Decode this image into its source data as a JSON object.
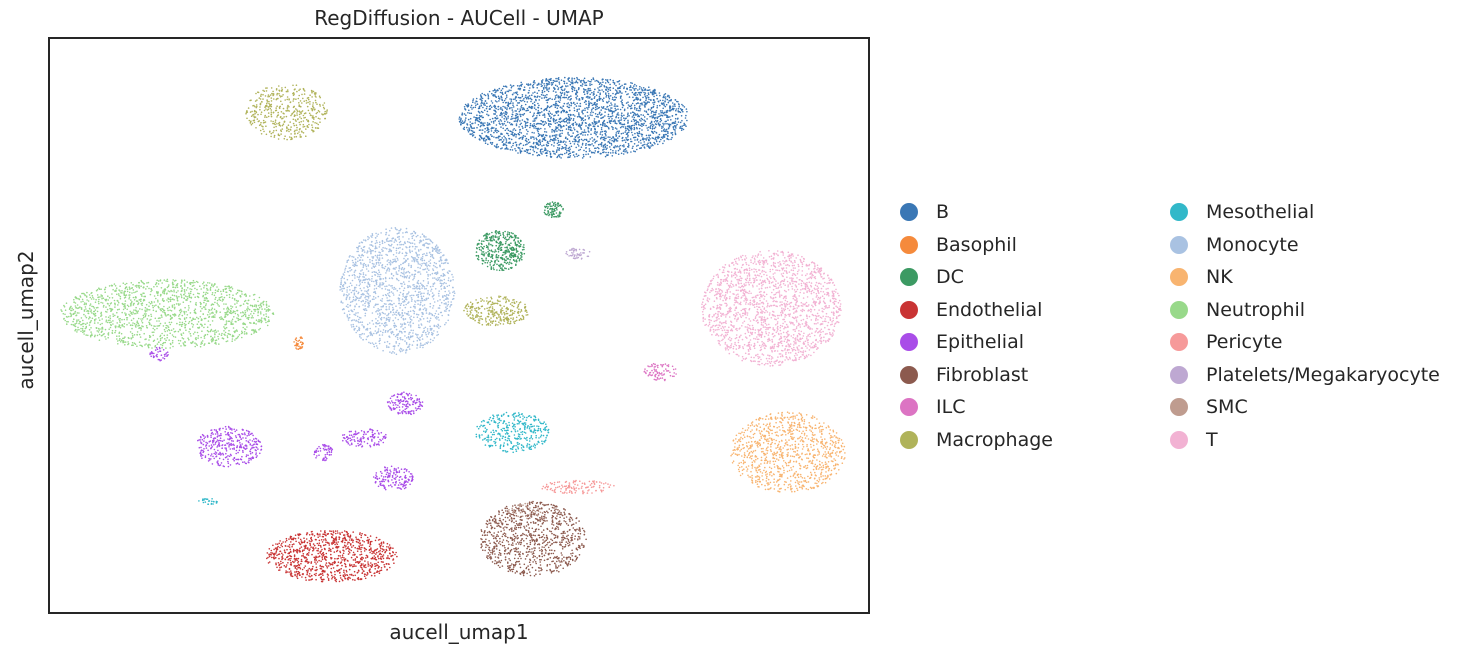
{
  "chart_data": {
    "type": "scatter",
    "title": "RegDiffusion - AUCell - UMAP",
    "xlabel": "aucell_umap1",
    "ylabel": "aucell_umap2",
    "xlim": [
      0,
      100
    ],
    "ylim": [
      0,
      100
    ],
    "grid": false,
    "legend_placement": "right",
    "series": [
      {
        "name": "B",
        "color": "#3a77b5",
        "clusters": [
          {
            "cx": 64,
            "cy": 86,
            "rx": 14,
            "ry": 7,
            "n": 2600
          }
        ]
      },
      {
        "name": "Basophil",
        "color": "#f58a3c",
        "clusters": [
          {
            "cx": 30.5,
            "cy": 47,
            "rx": 0.6,
            "ry": 1.2,
            "n": 40
          }
        ]
      },
      {
        "name": "DC",
        "color": "#3c9a63",
        "clusters": [
          {
            "cx": 55,
            "cy": 63,
            "rx": 3,
            "ry": 3.5,
            "n": 380
          },
          {
            "cx": 61.5,
            "cy": 70,
            "rx": 1.2,
            "ry": 1.4,
            "n": 80
          }
        ]
      },
      {
        "name": "Endothelial",
        "color": "#c93434",
        "clusters": [
          {
            "cx": 34.5,
            "cy": 10,
            "rx": 8,
            "ry": 4.5,
            "n": 950
          }
        ]
      },
      {
        "name": "Epithelial",
        "color": "#a94de8",
        "clusters": [
          {
            "cx": 22,
            "cy": 29,
            "rx": 4,
            "ry": 3.5,
            "n": 350
          },
          {
            "cx": 43.5,
            "cy": 36.5,
            "rx": 2.2,
            "ry": 2,
            "n": 140
          },
          {
            "cx": 38.5,
            "cy": 30.5,
            "rx": 2.8,
            "ry": 1.6,
            "n": 120
          },
          {
            "cx": 42,
            "cy": 23.5,
            "rx": 2.5,
            "ry": 2.2,
            "n": 150
          },
          {
            "cx": 33.5,
            "cy": 28,
            "rx": 1.2,
            "ry": 1.5,
            "n": 60
          },
          {
            "cx": 13.5,
            "cy": 45,
            "rx": 1.2,
            "ry": 1.2,
            "n": 40
          }
        ]
      },
      {
        "name": "Fibroblast",
        "color": "#8c5a4e",
        "clusters": [
          {
            "cx": 59,
            "cy": 13,
            "rx": 6.5,
            "ry": 6.5,
            "n": 900
          }
        ]
      },
      {
        "name": "ILC",
        "color": "#dc74c3",
        "clusters": [
          {
            "cx": 74.5,
            "cy": 42,
            "rx": 2,
            "ry": 1.6,
            "n": 80
          }
        ]
      },
      {
        "name": "Macrophage",
        "color": "#b0b35a",
        "clusters": [
          {
            "cx": 29,
            "cy": 87,
            "rx": 5,
            "ry": 4.8,
            "n": 450
          },
          {
            "cx": 54.5,
            "cy": 52.5,
            "rx": 4,
            "ry": 2.6,
            "n": 280
          }
        ]
      },
      {
        "name": "Mesothelial",
        "color": "#32b8c9",
        "clusters": [
          {
            "cx": 56.5,
            "cy": 31.5,
            "rx": 4.5,
            "ry": 3.5,
            "n": 350
          },
          {
            "cx": 19.5,
            "cy": 19.5,
            "rx": 1.2,
            "ry": 0.5,
            "n": 25
          }
        ]
      },
      {
        "name": "Monocyte",
        "color": "#a9c2e2",
        "clusters": [
          {
            "cx": 42.5,
            "cy": 56,
            "rx": 7,
            "ry": 11,
            "n": 1500
          }
        ]
      },
      {
        "name": "NK",
        "color": "#f8b470",
        "clusters": [
          {
            "cx": 90,
            "cy": 28,
            "rx": 7,
            "ry": 7,
            "n": 950
          }
        ]
      },
      {
        "name": "Neutrophil",
        "color": "#98d98a",
        "clusters": [
          {
            "cx": 14.5,
            "cy": 52,
            "rx": 13,
            "ry": 6,
            "n": 1500
          }
        ]
      },
      {
        "name": "Pericyte",
        "color": "#f69a9a",
        "clusters": [
          {
            "cx": 64.5,
            "cy": 22,
            "rx": 4.5,
            "ry": 1.2,
            "n": 120
          }
        ]
      },
      {
        "name": "Platelets/Megakaryocyte",
        "color": "#bea8d2",
        "clusters": [
          {
            "cx": 64.5,
            "cy": 62.5,
            "rx": 1.5,
            "ry": 1,
            "n": 50
          }
        ]
      },
      {
        "name": "SMC",
        "color": "#bf9c8f",
        "clusters": [
          {
            "cx": 58,
            "cy": 18,
            "rx": 2,
            "ry": 1.5,
            "n": 30
          }
        ]
      },
      {
        "name": "T",
        "color": "#f2b2d3",
        "clusters": [
          {
            "cx": 88,
            "cy": 53,
            "rx": 8.5,
            "ry": 10,
            "n": 1800
          }
        ]
      }
    ]
  }
}
